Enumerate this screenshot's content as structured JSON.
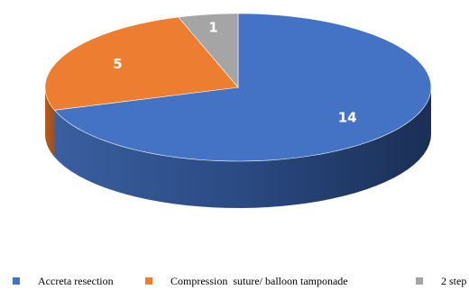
{
  "chart_data": {
    "type": "pie",
    "title": "",
    "style": "3d",
    "slices": [
      {
        "label": "Accreta resection",
        "value": 14,
        "color": "#4472c4"
      },
      {
        "label": "Compression  suture/ balloon tamponade",
        "value": 5,
        "color": "#ed7d31"
      },
      {
        "label": "2 step",
        "value": 1,
        "color": "#a5a5a5"
      }
    ],
    "legend_position": "bottom"
  }
}
